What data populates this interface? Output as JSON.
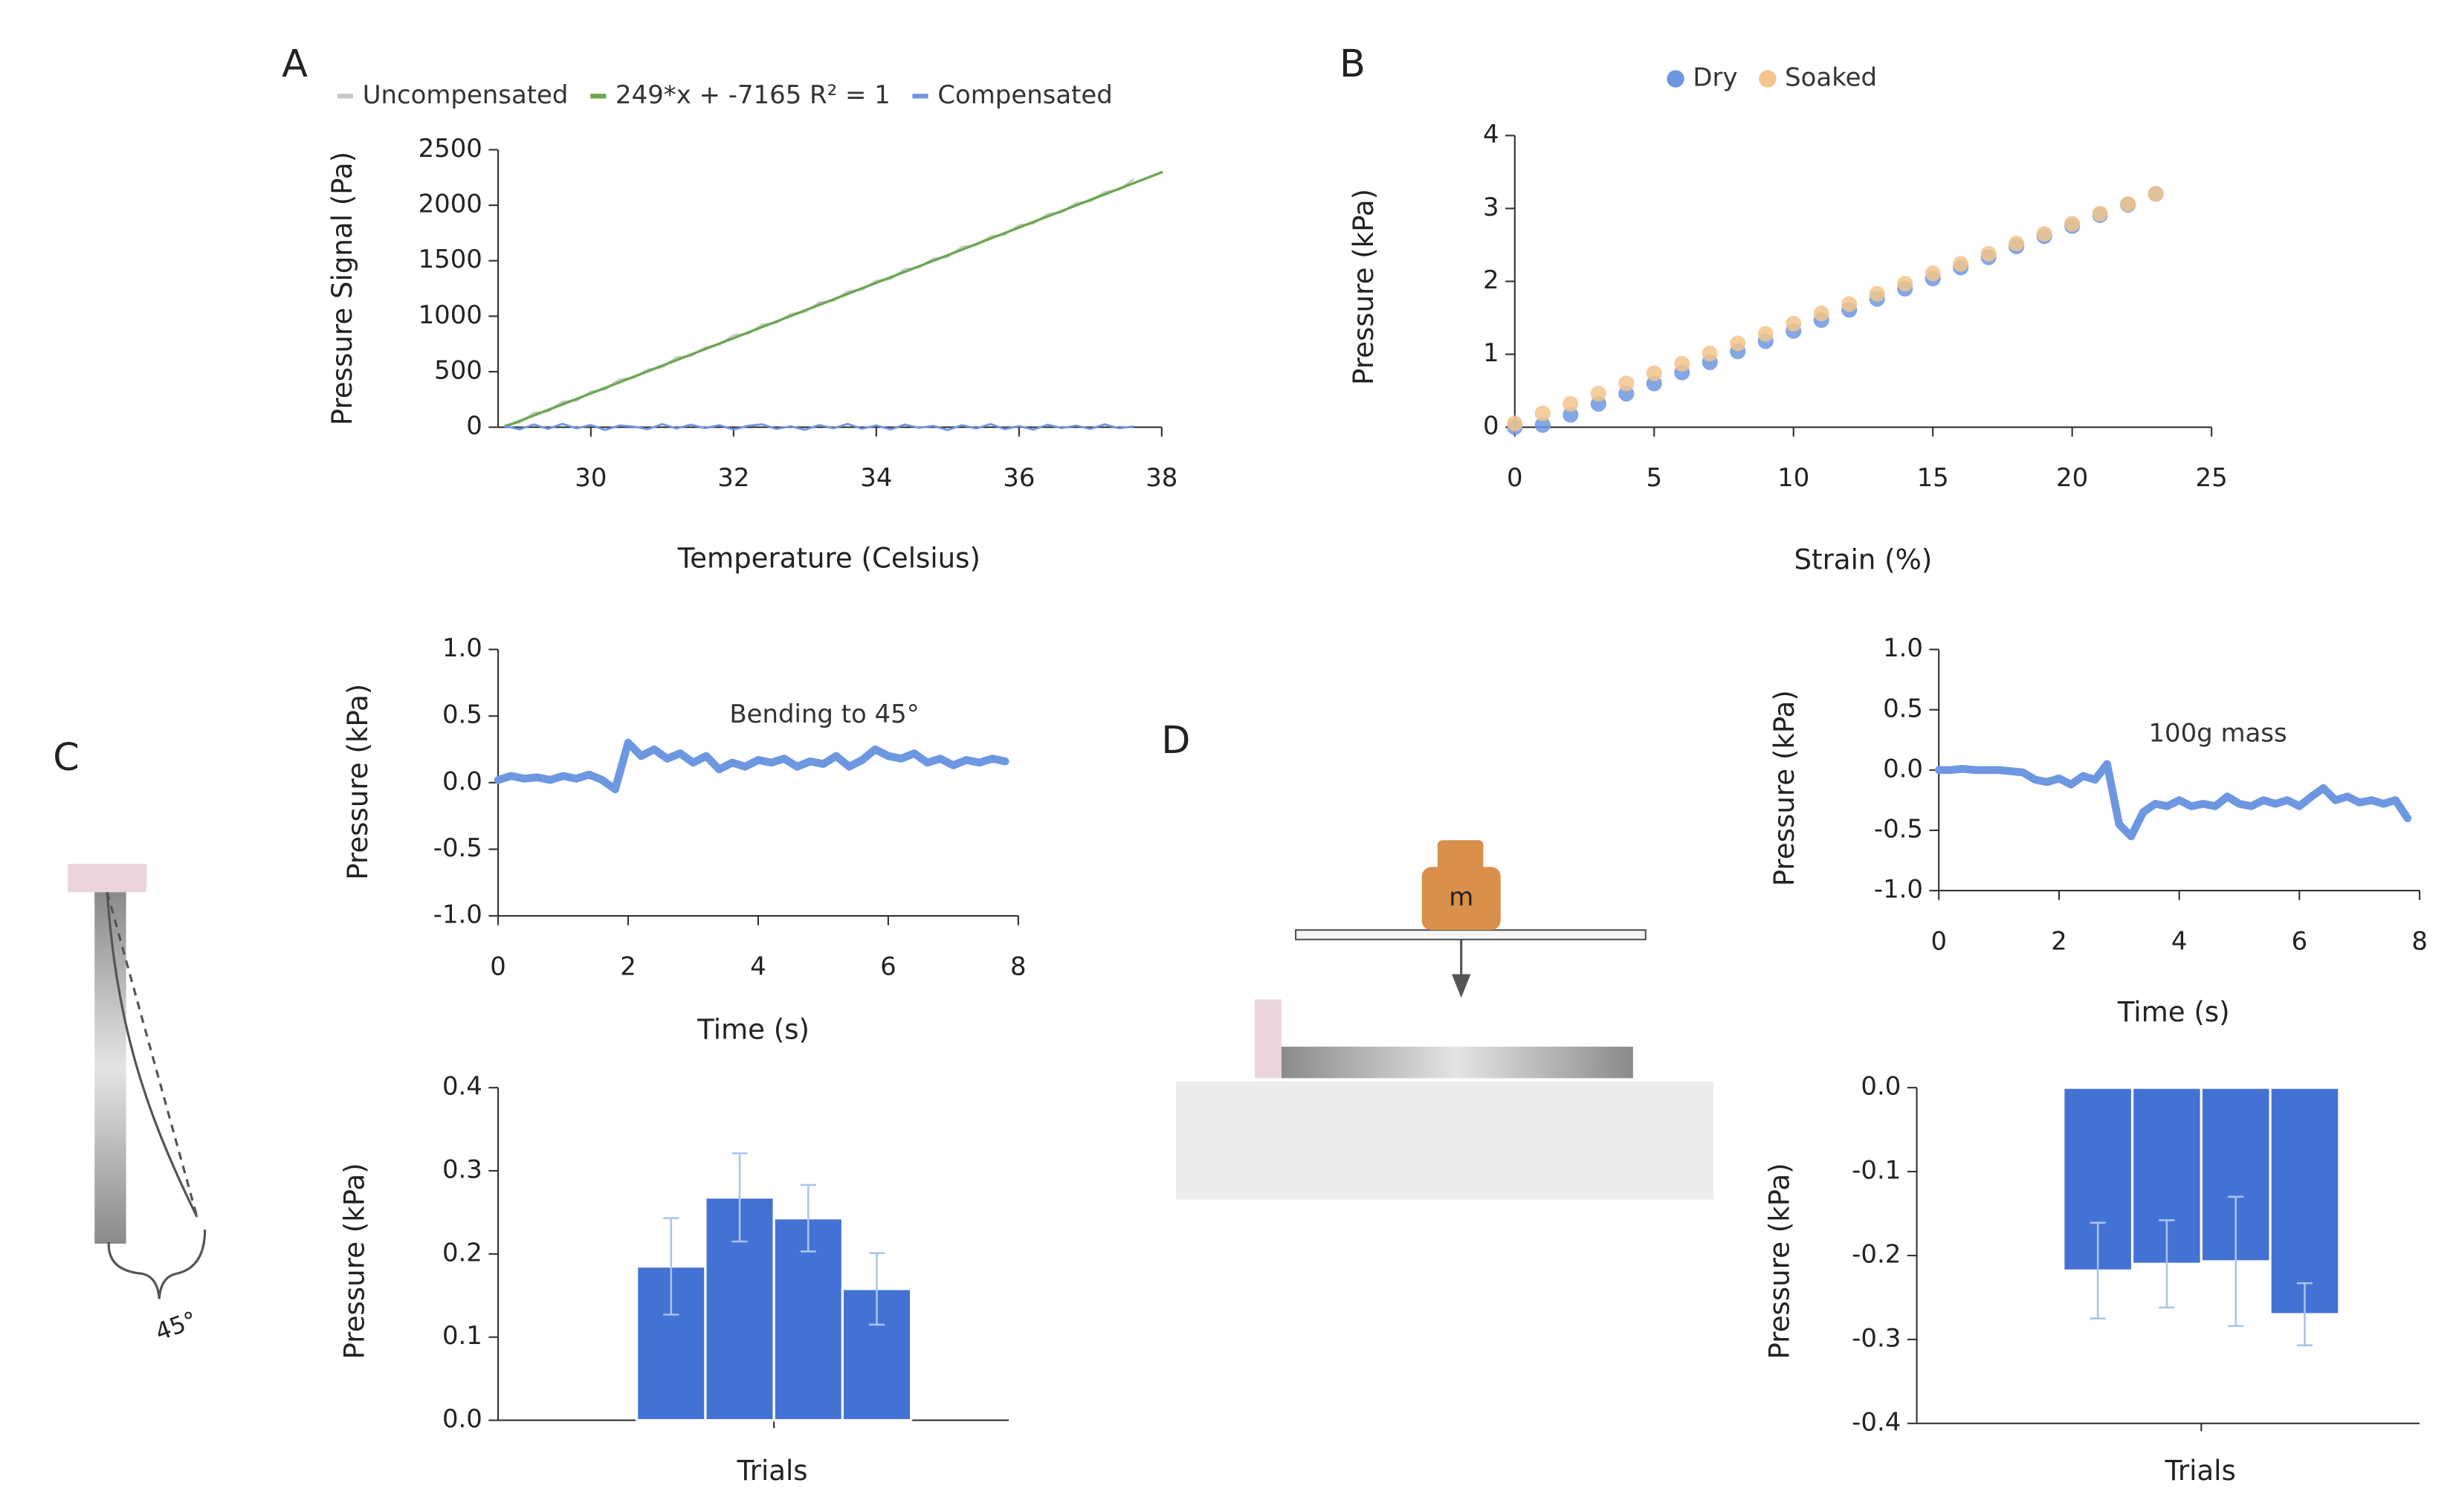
{
  "chart_data": [
    {
      "type": "line",
      "panel": "A",
      "xlabel": "Temperature (Celsius)",
      "ylabel": "Pressure Signal (Pa)",
      "xlim": [
        28.7,
        38
      ],
      "xticks": [
        30,
        32,
        34,
        36,
        38
      ],
      "ylim": [
        0,
        2500
      ],
      "yticks": [
        0,
        500,
        1000,
        1500,
        2000,
        2500
      ],
      "series": [
        {
          "name": "Uncompensated",
          "color": "#c8c8c8",
          "x": [
            28.8,
            29.0,
            29.2,
            29.4,
            29.6,
            29.8,
            30.0,
            30.2,
            30.4,
            30.6,
            30.8,
            31.0,
            31.2,
            31.4,
            31.6,
            31.8,
            32.0,
            32.2,
            32.4,
            32.6,
            32.8,
            33.0,
            33.2,
            33.4,
            33.6,
            33.8,
            34.0,
            34.2,
            34.4,
            34.6,
            34.8,
            35.0,
            35.2,
            35.4,
            35.6,
            35.8,
            36.0,
            36.2,
            36.4,
            36.6,
            36.8,
            37.0,
            37.2,
            37.4,
            37.6
          ],
          "values": [
            20,
            40,
            130,
            140,
            230,
            240,
            320,
            340,
            430,
            445,
            520,
            540,
            630,
            640,
            720,
            745,
            830,
            840,
            925,
            940,
            1020,
            1040,
            1125,
            1140,
            1225,
            1240,
            1320,
            1335,
            1425,
            1440,
            1520,
            1535,
            1625,
            1640,
            1720,
            1735,
            1820,
            1835,
            1920,
            1935,
            2020,
            2035,
            2120,
            2140,
            2230
          ]
        },
        {
          "name": "249*x + -7165 R² = 1",
          "color": "#6aa84f",
          "x": [
            28.8,
            38
          ],
          "values": [
            6,
            2297
          ]
        },
        {
          "name": "Compensated",
          "color": "#6d97e0",
          "x": [
            28.8,
            29.0,
            29.2,
            29.4,
            29.6,
            29.8,
            30.0,
            30.2,
            30.4,
            30.6,
            30.8,
            31.0,
            31.2,
            31.4,
            31.6,
            31.8,
            32.0,
            32.2,
            32.4,
            32.6,
            32.8,
            33.0,
            33.2,
            33.4,
            33.6,
            33.8,
            34.0,
            34.2,
            34.4,
            34.6,
            34.8,
            35.0,
            35.2,
            35.4,
            35.6,
            35.8,
            36.0,
            36.2,
            36.4,
            36.6,
            36.8,
            37.0,
            37.2,
            37.4,
            37.6
          ],
          "values": [
            10,
            -20,
            25,
            -15,
            30,
            -10,
            20,
            -25,
            15,
            5,
            -18,
            28,
            -12,
            22,
            -8,
            18,
            -22,
            12,
            26,
            -16,
            8,
            -24,
            20,
            -10,
            30,
            -14,
            16,
            -20,
            24,
            -6,
            12,
            -26,
            18,
            -12,
            28,
            -18,
            10,
            -22,
            22,
            -8,
            14,
            -16,
            26,
            -10,
            6
          ]
        }
      ]
    },
    {
      "type": "scatter",
      "panel": "B",
      "xlabel": "Strain (%)",
      "ylabel": "Pressure (kPa)",
      "xlim": [
        0,
        25
      ],
      "xticks": [
        0,
        5,
        10,
        15,
        20,
        25
      ],
      "ylim": [
        0,
        4
      ],
      "yticks": [
        0,
        1,
        2,
        3,
        4
      ],
      "series": [
        {
          "name": "Dry",
          "color": "#6d97e0",
          "x": [
            0,
            1,
            2,
            3,
            4,
            5,
            6,
            7,
            8,
            9,
            10,
            11,
            12,
            13,
            14,
            15,
            16,
            17,
            18,
            19,
            20,
            21,
            22,
            23
          ],
          "values": [
            0,
            0.03,
            0.17,
            0.32,
            0.46,
            0.6,
            0.75,
            0.89,
            1.04,
            1.18,
            1.32,
            1.47,
            1.61,
            1.76,
            1.9,
            2.04,
            2.19,
            2.33,
            2.48,
            2.62,
            2.76,
            2.91,
            3.05,
            3.2
          ]
        },
        {
          "name": "Soaked",
          "color": "#f3c48c",
          "x": [
            0,
            1,
            2,
            3,
            4,
            5,
            6,
            7,
            8,
            9,
            10,
            11,
            12,
            13,
            14,
            15,
            16,
            17,
            18,
            19,
            20,
            21,
            22,
            23
          ],
          "values": [
            0.05,
            0.19,
            0.32,
            0.46,
            0.6,
            0.74,
            0.87,
            1.01,
            1.15,
            1.28,
            1.42,
            1.56,
            1.69,
            1.83,
            1.97,
            2.11,
            2.24,
            2.38,
            2.52,
            2.65,
            2.79,
            2.93,
            3.06,
            3.2
          ]
        }
      ]
    },
    {
      "type": "line",
      "panel": "C",
      "annotation": "Bending to 45°",
      "xlabel": "Time (s)",
      "ylabel": "Pressure (kPa)",
      "xlim": [
        0,
        8
      ],
      "xticks": [
        0,
        2,
        4,
        6,
        8
      ],
      "ylim": [
        -1,
        1
      ],
      "yticks": [
        {
          "value": -1,
          "label": "-1.0"
        },
        -0.5,
        {
          "value": 0,
          "label": "0.0"
        },
        0.5,
        {
          "value": 1,
          "label": "1.0"
        }
      ],
      "series": [
        {
          "color": "#6d97e0",
          "x": [
            0,
            0.2,
            0.4,
            0.6,
            0.8,
            1.0,
            1.2,
            1.4,
            1.6,
            1.8,
            2.0,
            2.2,
            2.4,
            2.6,
            2.8,
            3.0,
            3.2,
            3.4,
            3.6,
            3.8,
            4.0,
            4.2,
            4.4,
            4.6,
            4.8,
            5.0,
            5.2,
            5.4,
            5.6,
            5.8,
            6.0,
            6.2,
            6.4,
            6.6,
            6.8,
            7.0,
            7.2,
            7.4,
            7.6,
            7.8
          ],
          "values": [
            0.02,
            0.05,
            0.03,
            0.04,
            0.02,
            0.05,
            0.03,
            0.06,
            0.02,
            -0.05,
            0.3,
            0.2,
            0.25,
            0.18,
            0.22,
            0.15,
            0.2,
            0.1,
            0.15,
            0.12,
            0.17,
            0.15,
            0.18,
            0.12,
            0.16,
            0.14,
            0.2,
            0.12,
            0.17,
            0.25,
            0.2,
            0.18,
            0.22,
            0.15,
            0.18,
            0.13,
            0.17,
            0.15,
            0.18,
            0.16
          ]
        }
      ]
    },
    {
      "type": "bar",
      "xlabel": "Trials",
      "ylabel": "Pressure (kPa)",
      "categories": [
        null,
        null,
        null,
        null
      ],
      "values": [
        0.185,
        0.268,
        0.243,
        0.158
      ],
      "errors": [
        0.058,
        0.053,
        0.04,
        0.043
      ],
      "color": "#4472d4",
      "ylim": [
        0,
        0.4
      ],
      "yticks": [
        {
          "value": 0,
          "label": "0.0"
        },
        0.1,
        0.2,
        0.3,
        0.4
      ]
    },
    {
      "type": "line",
      "panel": "D",
      "annotation": "100g mass",
      "xlabel": "Time (s)",
      "ylabel": "Pressure (kPa)",
      "xlim": [
        0,
        8
      ],
      "xticks": [
        0,
        2,
        4,
        6,
        8
      ],
      "ylim": [
        -1,
        1
      ],
      "yticks": [
        {
          "value": -1,
          "label": "-1.0"
        },
        -0.5,
        {
          "value": 0,
          "label": "0.0"
        },
        0.5,
        {
          "value": 1,
          "label": "1.0"
        }
      ],
      "series": [
        {
          "color": "#6d97e0",
          "x": [
            0,
            0.2,
            0.4,
            0.6,
            0.8,
            1.0,
            1.2,
            1.4,
            1.6,
            1.8,
            2.0,
            2.2,
            2.4,
            2.6,
            2.8,
            3.0,
            3.2,
            3.4,
            3.6,
            3.8,
            4.0,
            4.2,
            4.4,
            4.6,
            4.8,
            5.0,
            5.2,
            5.4,
            5.6,
            5.8,
            6.0,
            6.2,
            6.4,
            6.6,
            6.8,
            7.0,
            7.2,
            7.4,
            7.6,
            7.8
          ],
          "values": [
            0,
            0,
            0.01,
            0,
            0,
            0,
            -0.01,
            -0.02,
            -0.08,
            -0.1,
            -0.07,
            -0.12,
            -0.05,
            -0.08,
            0.05,
            -0.45,
            -0.55,
            -0.35,
            -0.28,
            -0.3,
            -0.25,
            -0.3,
            -0.28,
            -0.3,
            -0.22,
            -0.28,
            -0.3,
            -0.25,
            -0.28,
            -0.25,
            -0.3,
            -0.22,
            -0.15,
            -0.25,
            -0.22,
            -0.27,
            -0.25,
            -0.28,
            -0.25,
            -0.4
          ]
        }
      ]
    },
    {
      "type": "bar",
      "xlabel": "Trials",
      "ylabel": "Pressure (kPa)",
      "categories": [
        null,
        null,
        null,
        null
      ],
      "values": [
        -0.218,
        -0.21,
        -0.207,
        -0.27
      ],
      "errors": [
        0.057,
        0.052,
        0.077,
        0.037
      ],
      "color": "#4472d4",
      "ylim": [
        -0.4,
        0
      ],
      "yticks": [
        -0.4,
        -0.3,
        -0.2,
        -0.1,
        {
          "value": 0,
          "label": "0.0"
        }
      ]
    }
  ],
  "diagrams": {
    "C": {
      "angle_label": "45°"
    },
    "D": {
      "mass_label": "m"
    }
  }
}
